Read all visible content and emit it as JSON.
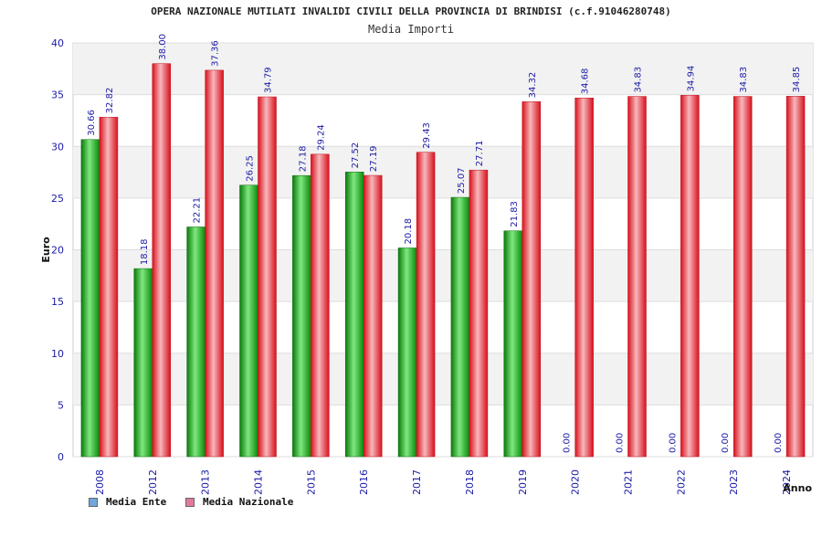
{
  "chart_data": {
    "type": "bar",
    "title": "OPERA NAZIONALE MUTILATI INVALIDI CIVILI DELLA PROVINCIA DI BRINDISI (c.f.91046280748)",
    "subtitle": "Media Importi",
    "xlabel": "Anno",
    "ylabel": "Euro",
    "ylim": [
      0,
      40
    ],
    "yticks": [
      0,
      5,
      10,
      15,
      20,
      25,
      30,
      35,
      40
    ],
    "grid": true,
    "legend_position": "bottom-left",
    "categories": [
      "2008",
      "2012",
      "2013",
      "2014",
      "2015",
      "2016",
      "2017",
      "2018",
      "2019",
      "2020",
      "2021",
      "2022",
      "2023",
      "2024"
    ],
    "series": [
      {
        "name": "Media Ente",
        "legend_color": "#6fa8dc",
        "bar_color": "#22aa22",
        "values": [
          30.66,
          18.18,
          22.21,
          26.25,
          27.18,
          27.52,
          20.18,
          25.07,
          21.83,
          0.0,
          0.0,
          0.0,
          0.0,
          0.0
        ],
        "labels": [
          "30.66",
          "18.18",
          "22.21",
          "26.25",
          "27.18",
          "27.52",
          "20.18",
          "25.07",
          "21.83",
          "0.00",
          "0.00",
          "0.00",
          "0.00",
          "0.00"
        ]
      },
      {
        "name": "Media Nazionale",
        "legend_color": "#e07aa0",
        "bar_color": "#ee2233",
        "values": [
          32.82,
          38.0,
          37.36,
          34.79,
          29.24,
          27.19,
          29.43,
          27.71,
          34.32,
          34.68,
          34.83,
          34.94,
          34.83,
          34.85
        ],
        "labels": [
          "32.82",
          "38.00",
          "37.36",
          "34.79",
          "29.24",
          "27.19",
          "29.43",
          "27.71",
          "34.32",
          "34.68",
          "34.83",
          "34.94",
          "34.83",
          "34.85"
        ]
      }
    ]
  }
}
